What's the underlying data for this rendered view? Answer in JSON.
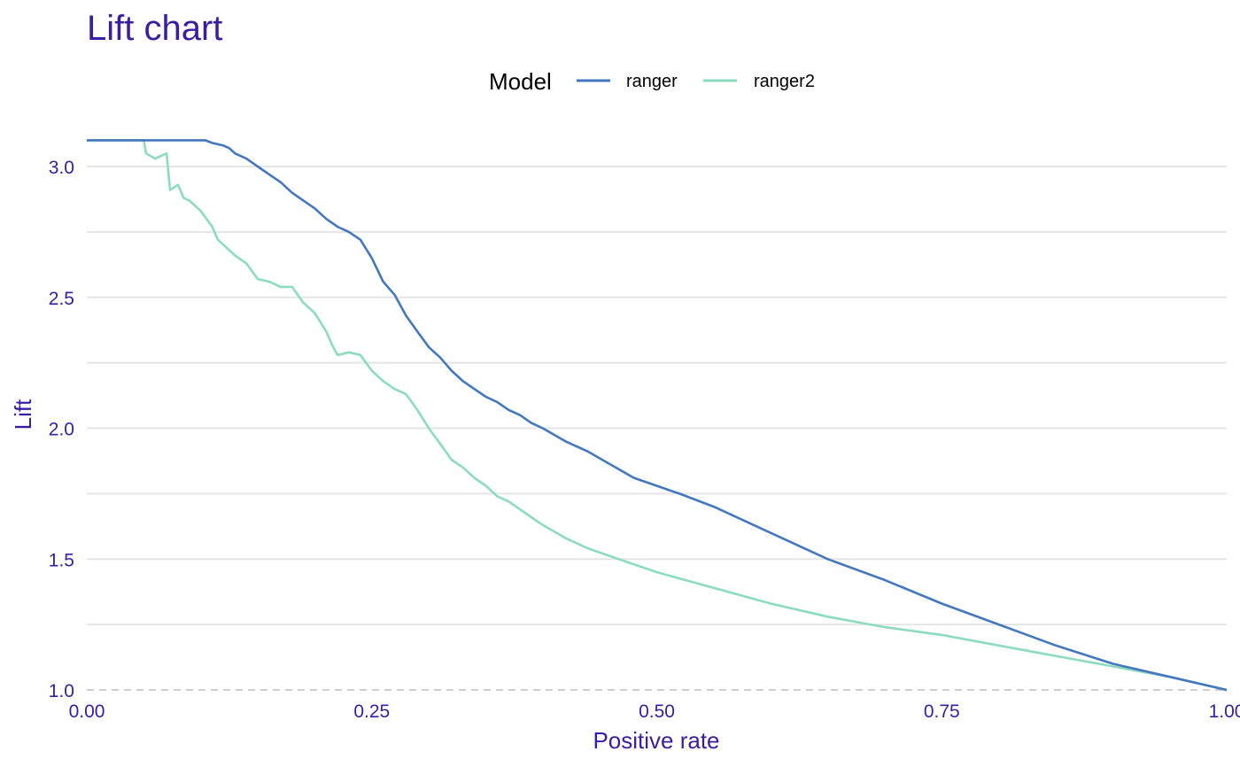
{
  "chart_data": {
    "type": "line",
    "title": "Lift chart",
    "xlabel": "Positive rate",
    "ylabel": "Lift",
    "xlim": [
      0,
      1
    ],
    "ylim": [
      1.0,
      3.1
    ],
    "x_ticks": [
      "0.00",
      "0.25",
      "0.50",
      "0.75",
      "1.00"
    ],
    "y_ticks": [
      "1.0",
      "1.5",
      "2.0",
      "2.5",
      "3.0"
    ],
    "grid": "horizontal",
    "legend": {
      "title": "Model",
      "position": "top"
    },
    "baseline": {
      "y": 1.0,
      "style": "dashed"
    },
    "series": [
      {
        "name": "ranger",
        "color": "#4378bf",
        "x": [
          0,
          0.04,
          0.08,
          0.104,
          0.11,
          0.12,
          0.125,
          0.13,
          0.14,
          0.15,
          0.16,
          0.17,
          0.18,
          0.19,
          0.2,
          0.21,
          0.22,
          0.23,
          0.24,
          0.25,
          0.26,
          0.27,
          0.28,
          0.29,
          0.3,
          0.31,
          0.32,
          0.33,
          0.34,
          0.35,
          0.36,
          0.37,
          0.38,
          0.39,
          0.4,
          0.42,
          0.44,
          0.46,
          0.48,
          0.5,
          0.52,
          0.55,
          0.6,
          0.65,
          0.7,
          0.75,
          0.8,
          0.85,
          0.9,
          0.95,
          1.0
        ],
        "y": [
          3.1,
          3.1,
          3.1,
          3.1,
          3.09,
          3.08,
          3.07,
          3.05,
          3.03,
          3.0,
          2.97,
          2.94,
          2.9,
          2.87,
          2.84,
          2.8,
          2.77,
          2.75,
          2.72,
          2.65,
          2.56,
          2.51,
          2.43,
          2.37,
          2.31,
          2.27,
          2.22,
          2.18,
          2.15,
          2.12,
          2.1,
          2.07,
          2.05,
          2.02,
          2.0,
          1.95,
          1.91,
          1.86,
          1.81,
          1.78,
          1.75,
          1.7,
          1.6,
          1.5,
          1.42,
          1.33,
          1.25,
          1.17,
          1.1,
          1.05,
          1.0
        ]
      },
      {
        "name": "ranger2",
        "color": "#8bdcbe",
        "x": [
          0,
          0.04,
          0.05,
          0.052,
          0.06,
          0.07,
          0.073,
          0.08,
          0.085,
          0.09,
          0.095,
          0.1,
          0.105,
          0.11,
          0.115,
          0.12,
          0.125,
          0.13,
          0.14,
          0.15,
          0.16,
          0.17,
          0.175,
          0.18,
          0.19,
          0.2,
          0.21,
          0.215,
          0.22,
          0.23,
          0.24,
          0.25,
          0.26,
          0.27,
          0.28,
          0.29,
          0.3,
          0.31,
          0.32,
          0.33,
          0.34,
          0.35,
          0.36,
          0.37,
          0.38,
          0.39,
          0.4,
          0.42,
          0.44,
          0.46,
          0.48,
          0.5,
          0.55,
          0.6,
          0.65,
          0.7,
          0.75,
          0.8,
          0.85,
          0.9,
          0.95,
          1.0
        ],
        "y": [
          3.1,
          3.1,
          3.1,
          3.05,
          3.03,
          3.05,
          2.91,
          2.93,
          2.88,
          2.87,
          2.85,
          2.83,
          2.8,
          2.77,
          2.72,
          2.7,
          2.68,
          2.66,
          2.63,
          2.57,
          2.56,
          2.54,
          2.54,
          2.54,
          2.48,
          2.44,
          2.37,
          2.32,
          2.28,
          2.29,
          2.28,
          2.22,
          2.18,
          2.15,
          2.13,
          2.07,
          2.0,
          1.94,
          1.88,
          1.85,
          1.81,
          1.78,
          1.74,
          1.72,
          1.69,
          1.66,
          1.63,
          1.58,
          1.54,
          1.51,
          1.48,
          1.45,
          1.39,
          1.33,
          1.28,
          1.24,
          1.21,
          1.17,
          1.13,
          1.09,
          1.05,
          1.0
        ]
      }
    ]
  }
}
